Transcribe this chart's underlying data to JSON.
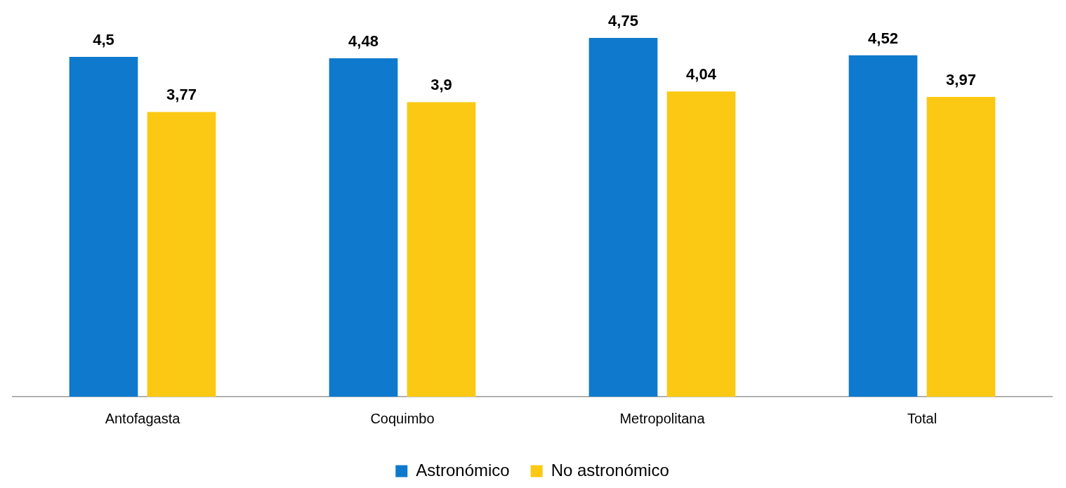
{
  "chart_data": {
    "type": "bar",
    "categories": [
      "Antofagasta",
      "Coquimbo",
      "Metropolitana",
      "Total"
    ],
    "series": [
      {
        "name": "Astronómico",
        "color": "#0e79cd",
        "values": [
          4.5,
          4.48,
          4.75,
          4.52
        ],
        "value_labels": [
          "4,5",
          "4,48",
          "4,75",
          "4,52"
        ]
      },
      {
        "name": "No astronómico",
        "color": "#fbc913",
        "values": [
          3.77,
          3.9,
          4.04,
          3.97
        ],
        "value_labels": [
          "3,77",
          "3,9",
          "4,04",
          "3,97"
        ]
      }
    ],
    "legend": "bottom"
  }
}
